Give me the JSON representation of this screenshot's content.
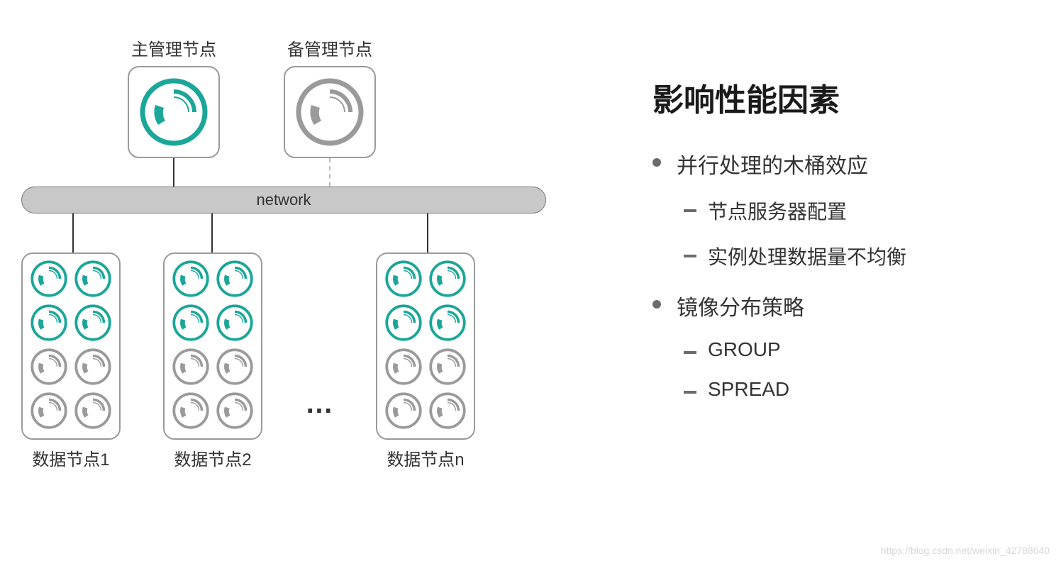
{
  "colors": {
    "teal": "#1aa699",
    "gray": "#9a9a9a",
    "bg": "#ffffff",
    "network_bg": "#c8c8c8",
    "text": "#333333"
  },
  "diagram": {
    "master": {
      "label": "主管理节点",
      "icon_color": "#1aa699"
    },
    "standby": {
      "label": "备管理节点",
      "icon_color": "#9a9a9a"
    },
    "network_label": "network",
    "data_nodes": [
      {
        "label": "数据节点1"
      },
      {
        "label": "数据节点2"
      },
      {
        "label": "数据节点n"
      }
    ],
    "ellipsis": "…",
    "segment_icon_rows": [
      [
        "teal",
        "teal"
      ],
      [
        "teal",
        "teal"
      ],
      [
        "gray",
        "gray"
      ],
      [
        "gray",
        "gray"
      ]
    ]
  },
  "text": {
    "heading": "影响性能因素",
    "bullets": [
      {
        "label": "并行处理的木桶效应",
        "sub": [
          "节点服务器配置",
          "实例处理数据量不均衡"
        ]
      },
      {
        "label": "镜像分布策略",
        "sub": [
          "GROUP",
          "SPREAD"
        ]
      }
    ]
  },
  "watermark": "https://blog.csdn.net/weixin_42788640"
}
